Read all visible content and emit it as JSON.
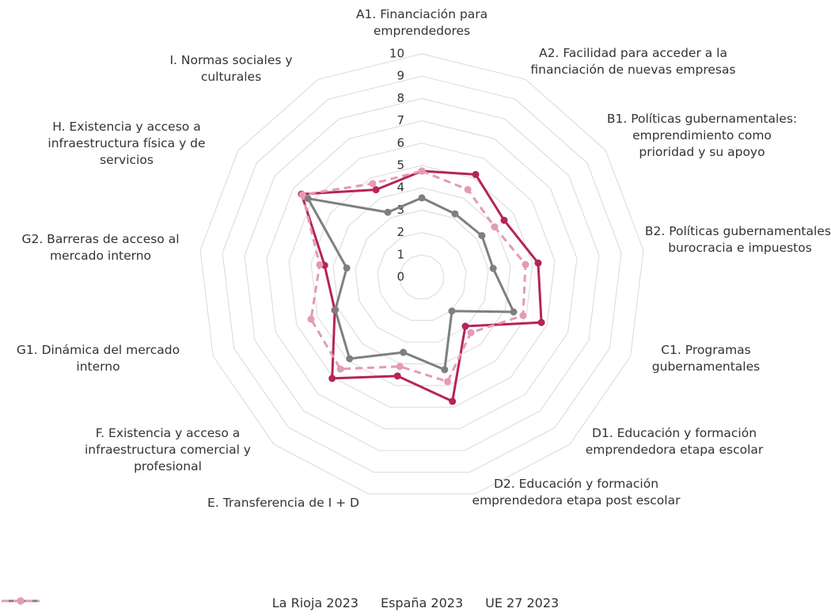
{
  "chart_data": {
    "type": "radar",
    "categories": [
      "A1. Financiación para emprendedores",
      "A2. Facilidad para acceder a la financiación de nuevas empresas",
      "B1. Políticas gubernamentales: emprendimiento como prioridad y su apoyo",
      "B2. Políticas gubernamentales: burocracia e impuestos",
      "C1. Programas gubernamentales",
      "D1. Educación y formación emprendedora etapa escolar",
      "D2. Educación y formación emprendedora etapa post escolar",
      "E. Transferencia de I + D",
      "F. Existencia y acceso a infraestructura comercial y profesional",
      "G1. Dinámica del mercado interno",
      "G2. Barreras de acceso al mercado interno",
      "H. Existencia y acceso a infraestructura física y de servicios",
      "I. Normas sociales y culturales"
    ],
    "series": [
      {
        "name": "La Rioja 2023",
        "color": "#b5245a",
        "dashed": false,
        "values": [
          4.75,
          5.19,
          4.48,
          5.25,
          5.73,
          2.94,
          5.73,
          4.56,
          6.06,
          4.17,
          4.39,
          6.55,
          4.42
        ]
      },
      {
        "name": "España 2023",
        "color": "#7f7f7f",
        "dashed": false,
        "values": [
          3.55,
          3.2,
          3.27,
          3.22,
          4.4,
          2.03,
          4.27,
          3.47,
          4.88,
          4.15,
          3.39,
          6.2,
          3.28
        ]
      },
      {
        "name": "UE 27 2023",
        "color": "#e59ab5",
        "dashed": true,
        "values": [
          4.75,
          4.43,
          3.96,
          4.68,
          4.85,
          3.32,
          4.82,
          4.12,
          5.5,
          5.31,
          4.61,
          6.5,
          4.73
        ]
      }
    ],
    "ylim": [
      0,
      10
    ],
    "yticks": [
      0,
      1,
      2,
      3,
      4,
      5,
      6,
      7,
      8,
      9,
      10
    ],
    "grid": true,
    "legend": "bottom"
  }
}
